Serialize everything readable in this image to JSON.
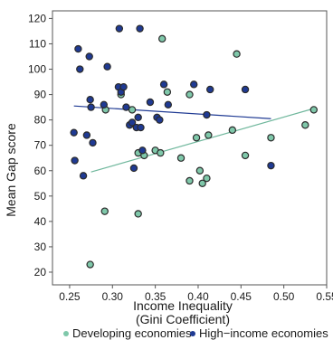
{
  "chart_data": {
    "type": "scatter",
    "xlabel": [
      "Income Inequality",
      "(Gini Coefficient)"
    ],
    "ylabel": "Mean Gap score",
    "xlim": [
      0.23,
      0.55
    ],
    "ylim": [
      15,
      123
    ],
    "xticks": [
      "0.25",
      "0.30",
      "0.35",
      "0.40",
      "0.45",
      "0.50",
      "0.55"
    ],
    "xtick_values": [
      0.25,
      0.3,
      0.35,
      0.4,
      0.45,
      0.5,
      0.55
    ],
    "yticks": [
      "20",
      "30",
      "40",
      "50",
      "60",
      "70",
      "80",
      "90",
      "100",
      "110",
      "120"
    ],
    "ytick_values": [
      20,
      30,
      40,
      50,
      60,
      70,
      80,
      90,
      100,
      110,
      120
    ],
    "grid": false,
    "legend_position": "bottom",
    "series": [
      {
        "name": "Developing economies",
        "color": "#7fc8aa",
        "points": [
          [
            0.291,
            44
          ],
          [
            0.274,
            23
          ],
          [
            0.292,
            84
          ],
          [
            0.31,
            90
          ],
          [
            0.323,
            84
          ],
          [
            0.33,
            43
          ],
          [
            0.33,
            67
          ],
          [
            0.337,
            66
          ],
          [
            0.35,
            68
          ],
          [
            0.356,
            67
          ],
          [
            0.358,
            112
          ],
          [
            0.364,
            91
          ],
          [
            0.38,
            65
          ],
          [
            0.39,
            56
          ],
          [
            0.39,
            90
          ],
          [
            0.398,
            73
          ],
          [
            0.402,
            60
          ],
          [
            0.405,
            55
          ],
          [
            0.41,
            57
          ],
          [
            0.412,
            74
          ],
          [
            0.44,
            76
          ],
          [
            0.445,
            106
          ],
          [
            0.455,
            66
          ],
          [
            0.485,
            73
          ],
          [
            0.525,
            78
          ],
          [
            0.535,
            84
          ]
        ],
        "trend": {
          "x": [
            0.275,
            0.535
          ],
          "y": [
            59.5,
            84.5
          ],
          "color": "#6fb79c"
        }
      },
      {
        "name": "High−income economies",
        "color": "#1f3a93",
        "points": [
          [
            0.255,
            75
          ],
          [
            0.256,
            64
          ],
          [
            0.26,
            108
          ],
          [
            0.262,
            100
          ],
          [
            0.266,
            58
          ],
          [
            0.27,
            74
          ],
          [
            0.273,
            105
          ],
          [
            0.274,
            88
          ],
          [
            0.275,
            85
          ],
          [
            0.277,
            71
          ],
          [
            0.29,
            86
          ],
          [
            0.294,
            101
          ],
          [
            0.307,
            93
          ],
          [
            0.308,
            116
          ],
          [
            0.31,
            91
          ],
          [
            0.313,
            93
          ],
          [
            0.316,
            85
          ],
          [
            0.32,
            78
          ],
          [
            0.323,
            79
          ],
          [
            0.325,
            61
          ],
          [
            0.328,
            77
          ],
          [
            0.33,
            81
          ],
          [
            0.333,
            77
          ],
          [
            0.335,
            68
          ],
          [
            0.332,
            116
          ],
          [
            0.344,
            87
          ],
          [
            0.352,
            81
          ],
          [
            0.355,
            80
          ],
          [
            0.36,
            94
          ],
          [
            0.365,
            86
          ],
          [
            0.395,
            94
          ],
          [
            0.41,
            82
          ],
          [
            0.414,
            92
          ],
          [
            0.455,
            92
          ],
          [
            0.485,
            62
          ]
        ],
        "trend": {
          "x": [
            0.255,
            0.485
          ],
          "y": [
            85.5,
            80.5
          ],
          "color": "#1f3a93"
        }
      }
    ]
  }
}
